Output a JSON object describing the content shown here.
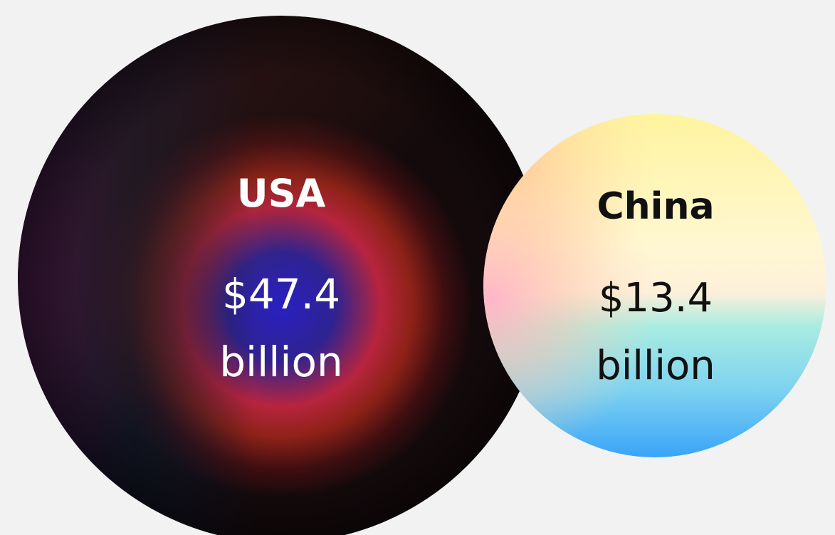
{
  "chart_data": {
    "type": "bubble",
    "title": "",
    "unit": "billion",
    "bubbles": [
      {
        "name": "USA",
        "value": 47.4,
        "value_label": "$47.4",
        "unit_label": "billion",
        "text_color": "#ffffff",
        "gradient_colors": [
          "#2a1fc2",
          "#c4243c",
          "#8a2a12",
          "#0c1018",
          "#3a164f"
        ]
      },
      {
        "name": "China",
        "value": 13.4,
        "value_label": "$13.4",
        "unit_label": "billion",
        "text_color": "#111111",
        "gradient_colors": [
          "#fff6a8",
          "#fff6d6",
          "#ffbfc8",
          "#9fe6df",
          "#3fb2f5"
        ]
      }
    ]
  }
}
